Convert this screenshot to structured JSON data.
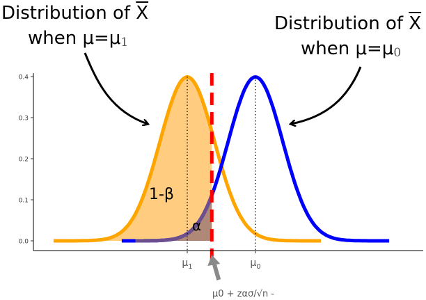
{
  "chart_data": {
    "type": "line",
    "ylim": [
      0,
      0.4
    ],
    "xlim": [
      -4.7,
      5.1
    ],
    "y_ticks": [
      "0.0",
      "0.1",
      "0.2",
      "0.3",
      "0.4"
    ],
    "x_tick_labels": [
      {
        "label": "μ",
        "sub": "1",
        "x": 0
      },
      {
        "label": "μ",
        "sub": "0",
        "x": 2.5
      }
    ],
    "series": [
      {
        "mean": 0,
        "sd": 1,
        "x_range": [
          -4.9,
          4.9
        ],
        "color": "#FFA500"
      },
      {
        "mean": 2.5,
        "sd": 1,
        "x_range": [
          -2.4,
          7.4
        ],
        "color": "#0000FF"
      }
    ],
    "critical_value": 0.9,
    "critical_line_color": "#FF0000",
    "regions": [
      {
        "name": "power",
        "label": "1-β",
        "from": -4.9,
        "to": 0.9,
        "curve": "orange",
        "color": "#FFCC80"
      },
      {
        "name": "alpha",
        "label": "α",
        "from": -2.4,
        "to": 0.9,
        "curve": "blue",
        "color": "#B08878"
      }
    ],
    "annotations": {
      "left_title": {
        "line1": "Distribution of ",
        "xbar": "X",
        "line2": "when μ=μ",
        "sub": "1"
      },
      "right_title": {
        "line1": "Distribution of ",
        "xbar": "X",
        "line2": "when μ=μ",
        "sub": "0"
      },
      "critical_label": "μ0 + zασ/√n -"
    },
    "grid": false,
    "legend": "none"
  }
}
